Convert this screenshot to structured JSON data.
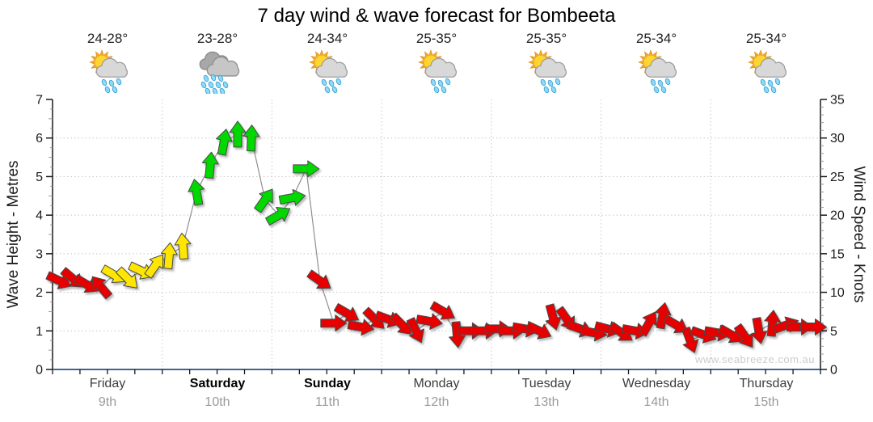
{
  "title": "7 day wind & wave forecast for Bombeeta",
  "watermark": "www.seabreeze.com.au",
  "days": [
    {
      "name": "Friday",
      "date": "9th",
      "temp": "24-28°",
      "icon": "sun-cloud-rain",
      "bold": false
    },
    {
      "name": "Saturday",
      "date": "10th",
      "temp": "23-28°",
      "icon": "heavy-rain",
      "bold": true
    },
    {
      "name": "Sunday",
      "date": "11th",
      "temp": "24-34°",
      "icon": "sun-cloud-rain",
      "bold": true
    },
    {
      "name": "Monday",
      "date": "12th",
      "temp": "25-35°",
      "icon": "sun-cloud-rain",
      "bold": false
    },
    {
      "name": "Tuesday",
      "date": "13th",
      "temp": "25-35°",
      "icon": "sun-cloud-rain",
      "bold": false
    },
    {
      "name": "Wednesday",
      "date": "14th",
      "temp": "25-34°",
      "icon": "sun-cloud-rain",
      "bold": false
    },
    {
      "name": "Thursday",
      "date": "15th",
      "temp": "25-34°",
      "icon": "sun-cloud-rain",
      "bold": false
    }
  ],
  "chart_data": {
    "type": "line",
    "title": "7 day wind & wave forecast for Bombeeta",
    "x_axis": {
      "categories": [
        "Friday 9th",
        "Saturday 10th",
        "Sunday 11th",
        "Monday 12th",
        "Tuesday 13th",
        "Wednesday 14th",
        "Thursday 15th"
      ],
      "points_per_day": 8,
      "interval_hours": 3
    },
    "y_left": {
      "label": "Wave Height - Metres",
      "range": [
        0,
        7
      ],
      "ticks": [
        0,
        1,
        2,
        3,
        4,
        5,
        6,
        7
      ]
    },
    "y_right": {
      "label": "Wind Speed - Knots",
      "range": [
        0,
        35
      ],
      "ticks": [
        0,
        5,
        10,
        15,
        20,
        25,
        30,
        35
      ]
    },
    "grid": true,
    "marker": "wind-direction-arrow",
    "arrow_colors": {
      "red": "#e60000",
      "yellow": "#ffe600",
      "green": "#00d800"
    },
    "series": [
      {
        "name": "wave-height-metres (wind speed = value x 5 knots)",
        "points": [
          {
            "v": 2.3,
            "dir": -25,
            "c": "red"
          },
          {
            "v": 2.35,
            "dir": -40,
            "c": "red"
          },
          {
            "v": 2.2,
            "dir": -30,
            "c": "red"
          },
          {
            "v": 2.15,
            "dir": 130,
            "c": "red"
          },
          {
            "v": 2.45,
            "dir": -30,
            "c": "yellow"
          },
          {
            "v": 2.35,
            "dir": -45,
            "c": "yellow"
          },
          {
            "v": 2.55,
            "dir": -25,
            "c": "yellow"
          },
          {
            "v": 2.7,
            "dir": 55,
            "c": "yellow"
          },
          {
            "v": 2.95,
            "dir": 85,
            "c": "yellow"
          },
          {
            "v": 3.2,
            "dir": 95,
            "c": "yellow"
          },
          {
            "v": 4.6,
            "dir": 100,
            "c": "green"
          },
          {
            "v": 5.3,
            "dir": 85,
            "c": "green"
          },
          {
            "v": 5.9,
            "dir": 80,
            "c": "green"
          },
          {
            "v": 6.1,
            "dir": 90,
            "c": "green"
          },
          {
            "v": 6.0,
            "dir": 88,
            "c": "green"
          },
          {
            "v": 4.4,
            "dir": 55,
            "c": "green"
          },
          {
            "v": 4.0,
            "dir": 30,
            "c": "green"
          },
          {
            "v": 4.45,
            "dir": 10,
            "c": "green"
          },
          {
            "v": 5.2,
            "dir": 0,
            "c": "green"
          },
          {
            "v": 2.3,
            "dir": -35,
            "c": "red"
          },
          {
            "v": 1.2,
            "dir": 0,
            "c": "red"
          },
          {
            "v": 1.45,
            "dir": -30,
            "c": "red"
          },
          {
            "v": 1.1,
            "dir": -10,
            "c": "red"
          },
          {
            "v": 1.3,
            "dir": -45,
            "c": "red"
          },
          {
            "v": 1.3,
            "dir": -20,
            "c": "red"
          },
          {
            "v": 1.15,
            "dir": -45,
            "c": "red"
          },
          {
            "v": 1.0,
            "dir": -65,
            "c": "red"
          },
          {
            "v": 1.25,
            "dir": -10,
            "c": "red"
          },
          {
            "v": 1.5,
            "dir": -30,
            "c": "red"
          },
          {
            "v": 0.9,
            "dir": -85,
            "c": "red"
          },
          {
            "v": 1.0,
            "dir": 0,
            "c": "red"
          },
          {
            "v": 1.0,
            "dir": 0,
            "c": "red"
          },
          {
            "v": 1.05,
            "dir": 0,
            "c": "red"
          },
          {
            "v": 1.0,
            "dir": 0,
            "c": "red"
          },
          {
            "v": 1.05,
            "dir": -10,
            "c": "red"
          },
          {
            "v": 1.0,
            "dir": -25,
            "c": "red"
          },
          {
            "v": 1.35,
            "dir": -75,
            "c": "red"
          },
          {
            "v": 1.3,
            "dir": -55,
            "c": "red"
          },
          {
            "v": 1.05,
            "dir": -20,
            "c": "red"
          },
          {
            "v": 0.95,
            "dir": -10,
            "c": "red"
          },
          {
            "v": 1.05,
            "dir": -15,
            "c": "red"
          },
          {
            "v": 0.95,
            "dir": -35,
            "c": "red"
          },
          {
            "v": 1.0,
            "dir": -10,
            "c": "red"
          },
          {
            "v": 1.2,
            "dir": 60,
            "c": "red"
          },
          {
            "v": 1.4,
            "dir": 80,
            "c": "red"
          },
          {
            "v": 1.15,
            "dir": -30,
            "c": "red"
          },
          {
            "v": 0.75,
            "dir": -70,
            "c": "red"
          },
          {
            "v": 0.9,
            "dir": -20,
            "c": "red"
          },
          {
            "v": 0.95,
            "dir": -10,
            "c": "red"
          },
          {
            "v": 0.9,
            "dir": -30,
            "c": "red"
          },
          {
            "v": 0.85,
            "dir": -55,
            "c": "red"
          },
          {
            "v": 1.0,
            "dir": -80,
            "c": "red"
          },
          {
            "v": 1.2,
            "dir": 85,
            "c": "red"
          },
          {
            "v": 1.15,
            "dir": 20,
            "c": "red"
          },
          {
            "v": 1.1,
            "dir": 0,
            "c": "red"
          },
          {
            "v": 1.1,
            "dir": 0,
            "c": "red"
          }
        ]
      }
    ]
  },
  "colors": {
    "axis_bottom": "#3b688c",
    "axis_dark": "#1a1a1a",
    "grid": "#c8c8c8",
    "line": "#8f8f8f",
    "tick_minor": "#999999",
    "day_label": "#3c3c3c",
    "date_label": "#9a9a9a",
    "watermark": "#cccccc"
  }
}
